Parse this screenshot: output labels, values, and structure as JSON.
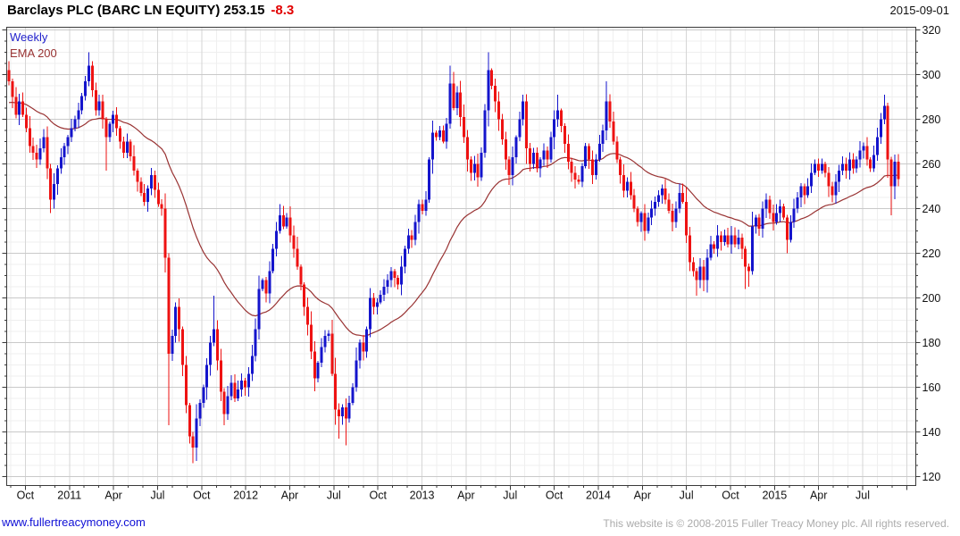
{
  "title": {
    "text": "Barclays PLC (BARC LN EQUITY) 253.15",
    "change": "-8.3",
    "date": "2015-09-01"
  },
  "legend": {
    "series1": "Weekly",
    "series2": "EMA 200"
  },
  "footer": {
    "left": "www.fullertreacymoney.com",
    "right": "This website is © 2008-2015 Fuller Treacy Money plc. All rights reserved."
  },
  "colors": {
    "up_candle": "#1414cc",
    "down_candle": "#ee1212",
    "ema_line": "#993333",
    "grid_major_h": "#c9c9c9",
    "grid_major_v": "#d6d6d6",
    "grid_minor": "#efefef",
    "axis": "#3a3a3a",
    "label": "#111111",
    "change_text": "#e20000",
    "link_text": "#0f0fd6",
    "copyright_text": "#ababab"
  },
  "chart_data": {
    "type": "candlestick",
    "title": "Barclays PLC (BARC LN EQUITY)",
    "frequency": "Weekly",
    "overlay": "EMA 200",
    "last_price": 253.15,
    "change": -8.3,
    "as_of": "2015-09-01",
    "ylim": [
      120,
      320
    ],
    "y_major_step": 20,
    "y_minor_step": 5,
    "y_tick_labels": [
      "320",
      "300",
      "280",
      "260",
      "240",
      "220",
      "200",
      "180",
      "160",
      "140",
      "120"
    ],
    "x_tick_labels": [
      "Oct",
      "2011",
      "Apr",
      "Jul",
      "Oct",
      "2012",
      "Apr",
      "Jul",
      "Oct",
      "2013",
      "Apr",
      "Jul",
      "Oct",
      "2014",
      "Apr",
      "Jul",
      "Oct",
      "2015",
      "Apr",
      "Jul"
    ],
    "n_weeks": 257,
    "close_anchors": [
      [
        0,
        297
      ],
      [
        1,
        290
      ],
      [
        2,
        282
      ],
      [
        3,
        288
      ],
      [
        5,
        276
      ],
      [
        6,
        268
      ],
      [
        8,
        262
      ],
      [
        10,
        272
      ],
      [
        12,
        244
      ],
      [
        14,
        258
      ],
      [
        16,
        268
      ],
      [
        18,
        276
      ],
      [
        20,
        284
      ],
      [
        22,
        297
      ],
      [
        23,
        304
      ],
      [
        24,
        293
      ],
      [
        25,
        284
      ],
      [
        26,
        288
      ],
      [
        28,
        272
      ],
      [
        29,
        278
      ],
      [
        30,
        282
      ],
      [
        32,
        270
      ],
      [
        33,
        265
      ],
      [
        34,
        270
      ],
      [
        36,
        257
      ],
      [
        38,
        247
      ],
      [
        39,
        243
      ],
      [
        41,
        255
      ],
      [
        43,
        242
      ],
      [
        44,
        240
      ],
      [
        45,
        218
      ],
      [
        46,
        175
      ],
      [
        47,
        183
      ],
      [
        48,
        196
      ],
      [
        49,
        186
      ],
      [
        50,
        170
      ],
      [
        51,
        152
      ],
      [
        52,
        138
      ],
      [
        53,
        133
      ],
      [
        54,
        146
      ],
      [
        56,
        160
      ],
      [
        57,
        170
      ],
      [
        58,
        180
      ],
      [
        59,
        186
      ],
      [
        60,
        172
      ],
      [
        61,
        158
      ],
      [
        62,
        148
      ],
      [
        63,
        156
      ],
      [
        64,
        162
      ],
      [
        65,
        155
      ],
      [
        67,
        163
      ],
      [
        68,
        160
      ],
      [
        69,
        166
      ],
      [
        70,
        174
      ],
      [
        71,
        186
      ],
      [
        72,
        204
      ],
      [
        73,
        208
      ],
      [
        74,
        202
      ],
      [
        75,
        212
      ],
      [
        76,
        222
      ],
      [
        77,
        230
      ],
      [
        78,
        237
      ],
      [
        79,
        232
      ],
      [
        80,
        236
      ],
      [
        81,
        228
      ],
      [
        82,
        222
      ],
      [
        83,
        214
      ],
      [
        84,
        206
      ],
      [
        85,
        196
      ],
      [
        86,
        188
      ],
      [
        87,
        176
      ],
      [
        88,
        164
      ],
      [
        89,
        171
      ],
      [
        90,
        178
      ],
      [
        91,
        183
      ],
      [
        92,
        184
      ],
      [
        93,
        166
      ],
      [
        94,
        150
      ],
      [
        95,
        147
      ],
      [
        96,
        151
      ],
      [
        97,
        146
      ],
      [
        98,
        153
      ],
      [
        99,
        160
      ],
      [
        100,
        172
      ],
      [
        101,
        180
      ],
      [
        102,
        176
      ],
      [
        103,
        186
      ],
      [
        104,
        200
      ],
      [
        105,
        196
      ],
      [
        106,
        198
      ],
      [
        108,
        205
      ],
      [
        109,
        208
      ],
      [
        110,
        212
      ],
      [
        111,
        209
      ],
      [
        112,
        206
      ],
      [
        113,
        214
      ],
      [
        114,
        222
      ],
      [
        115,
        228
      ],
      [
        116,
        226
      ],
      [
        117,
        234
      ],
      [
        118,
        242
      ],
      [
        119,
        239
      ],
      [
        120,
        244
      ],
      [
        121,
        262
      ],
      [
        122,
        274
      ],
      [
        123,
        272
      ],
      [
        124,
        275
      ],
      [
        125,
        270
      ],
      [
        126,
        278
      ],
      [
        127,
        296
      ],
      [
        128,
        285
      ],
      [
        129,
        292
      ],
      [
        130,
        281
      ],
      [
        131,
        272
      ],
      [
        132,
        262
      ],
      [
        133,
        256
      ],
      [
        134,
        260
      ],
      [
        135,
        254
      ],
      [
        136,
        265
      ],
      [
        137,
        284
      ],
      [
        138,
        302
      ],
      [
        139,
        295
      ],
      [
        140,
        288
      ],
      [
        141,
        280
      ],
      [
        142,
        271
      ],
      [
        143,
        262
      ],
      [
        144,
        255
      ],
      [
        145,
        263
      ],
      [
        146,
        272
      ],
      [
        147,
        280
      ],
      [
        148,
        288
      ],
      [
        149,
        267
      ],
      [
        150,
        260
      ],
      [
        151,
        265
      ],
      [
        152,
        258
      ],
      [
        153,
        262
      ],
      [
        154,
        266
      ],
      [
        155,
        262
      ],
      [
        156,
        272
      ],
      [
        157,
        280
      ],
      [
        158,
        284
      ],
      [
        159,
        277
      ],
      [
        160,
        269
      ],
      [
        161,
        261
      ],
      [
        162,
        256
      ],
      [
        163,
        253
      ],
      [
        164,
        252
      ],
      [
        165,
        259
      ],
      [
        166,
        268
      ],
      [
        167,
        262
      ],
      [
        168,
        255
      ],
      [
        169,
        262
      ],
      [
        170,
        269
      ],
      [
        171,
        275
      ],
      [
        172,
        288
      ],
      [
        173,
        279
      ],
      [
        174,
        270
      ],
      [
        175,
        262
      ],
      [
        176,
        255
      ],
      [
        177,
        248
      ],
      [
        178,
        252
      ],
      [
        179,
        246
      ],
      [
        180,
        240
      ],
      [
        181,
        234
      ],
      [
        182,
        238
      ],
      [
        183,
        230
      ],
      [
        184,
        236
      ],
      [
        185,
        240
      ],
      [
        186,
        243
      ],
      [
        187,
        246
      ],
      [
        188,
        249
      ],
      [
        189,
        244
      ],
      [
        190,
        239
      ],
      [
        191,
        234
      ],
      [
        192,
        240
      ],
      [
        193,
        247
      ],
      [
        194,
        243
      ],
      [
        195,
        228
      ],
      [
        196,
        216
      ],
      [
        197,
        212
      ],
      [
        198,
        208
      ],
      [
        199,
        214
      ],
      [
        200,
        208
      ],
      [
        201,
        218
      ],
      [
        202,
        224
      ],
      [
        203,
        222
      ],
      [
        204,
        228
      ],
      [
        205,
        225
      ],
      [
        206,
        228
      ],
      [
        207,
        224
      ],
      [
        208,
        228
      ],
      [
        209,
        224
      ],
      [
        210,
        227
      ],
      [
        211,
        222
      ],
      [
        212,
        214
      ],
      [
        213,
        212
      ],
      [
        214,
        232
      ],
      [
        215,
        236
      ],
      [
        216,
        231
      ],
      [
        217,
        240
      ],
      [
        218,
        244
      ],
      [
        219,
        238
      ],
      [
        220,
        234
      ],
      [
        221,
        238
      ],
      [
        222,
        241
      ],
      [
        223,
        236
      ],
      [
        224,
        226
      ],
      [
        225,
        234
      ],
      [
        226,
        240
      ],
      [
        227,
        245
      ],
      [
        228,
        250
      ],
      [
        229,
        246
      ],
      [
        230,
        250
      ],
      [
        231,
        256
      ],
      [
        232,
        260
      ],
      [
        233,
        257
      ],
      [
        234,
        260
      ],
      [
        235,
        256
      ],
      [
        236,
        250
      ],
      [
        237,
        246
      ],
      [
        238,
        252
      ],
      [
        239,
        257
      ],
      [
        240,
        260
      ],
      [
        241,
        257
      ],
      [
        242,
        262
      ],
      [
        243,
        258
      ],
      [
        244,
        262
      ],
      [
        245,
        266
      ],
      [
        246,
        268
      ],
      [
        247,
        262
      ],
      [
        248,
        258
      ],
      [
        249,
        264
      ],
      [
        250,
        272
      ],
      [
        251,
        280
      ],
      [
        252,
        286
      ],
      [
        253,
        262
      ],
      [
        254,
        250
      ],
      [
        255,
        261
      ],
      [
        256,
        253.15
      ]
    ],
    "wick_overrides": {
      "12": {
        "low": 238
      },
      "23": {
        "high": 310
      },
      "28": {
        "low": 257
      },
      "46": {
        "low": 143,
        "high": 220
      },
      "53": {
        "low": 126
      },
      "54": {
        "low": 127
      },
      "59": {
        "high": 201
      },
      "62": {
        "low": 143
      },
      "72": {
        "high": 210
      },
      "78": {
        "high": 242
      },
      "95": {
        "low": 137
      },
      "97": {
        "low": 134
      },
      "127": {
        "high": 304
      },
      "138": {
        "high": 310
      },
      "158": {
        "high": 291
      },
      "163": {
        "low": 249
      },
      "172": {
        "high": 297
      },
      "198": {
        "low": 201
      },
      "200": {
        "low": 203
      },
      "212": {
        "low": 204
      },
      "213": {
        "low": 205
      },
      "224": {
        "low": 220
      },
      "252": {
        "high": 291
      },
      "254": {
        "low": 237
      }
    },
    "ema": {
      "seed": 287,
      "alpha": 0.0488
    }
  }
}
